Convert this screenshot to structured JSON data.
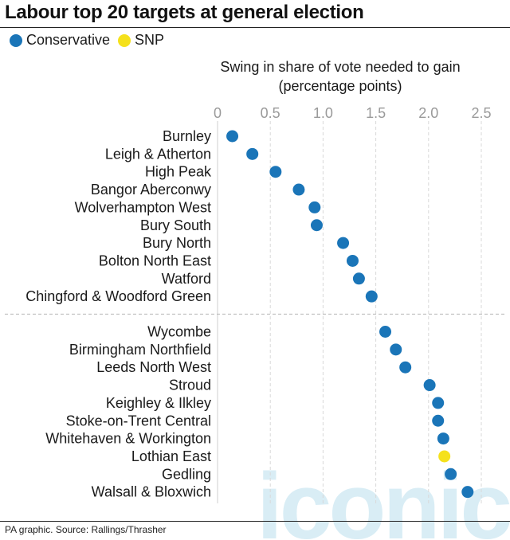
{
  "chart_data": {
    "type": "scatter",
    "title": "Labour top 20 targets at general election",
    "xlabel": [
      "Swing in share of vote needed to gain",
      "(percentage points)"
    ],
    "x_ticks": [
      "0",
      "0.5",
      "1.0",
      "1.5",
      "2.0",
      "2.5"
    ],
    "x_tick_values": [
      0,
      0.5,
      1.0,
      1.5,
      2.0,
      2.5
    ],
    "xlim": [
      0,
      2.5
    ],
    "grid": "vertical dashed",
    "legend_placement": "top-left",
    "series": [
      {
        "name": "Conservative",
        "color": "#1a75b8"
      },
      {
        "name": "SNP",
        "color": "#f5e11c"
      }
    ],
    "points": [
      {
        "seat": "Burnley",
        "swing": 0.14,
        "party": "Conservative"
      },
      {
        "seat": "Leigh & Atherton",
        "swing": 0.33,
        "party": "Conservative"
      },
      {
        "seat": "High Peak",
        "swing": 0.55,
        "party": "Conservative"
      },
      {
        "seat": "Bangor Aberconwy",
        "swing": 0.77,
        "party": "Conservative"
      },
      {
        "seat": "Wolverhampton West",
        "swing": 0.92,
        "party": "Conservative"
      },
      {
        "seat": "Bury South",
        "swing": 0.94,
        "party": "Conservative"
      },
      {
        "seat": "Bury North",
        "swing": 1.19,
        "party": "Conservative"
      },
      {
        "seat": "Bolton North East",
        "swing": 1.28,
        "party": "Conservative"
      },
      {
        "seat": "Watford",
        "swing": 1.34,
        "party": "Conservative"
      },
      {
        "seat": "Chingford & Woodford Green",
        "swing": 1.46,
        "party": "Conservative"
      },
      {
        "seat": "Wycombe",
        "swing": 1.59,
        "party": "Conservative"
      },
      {
        "seat": "Birmingham Northfield",
        "swing": 1.69,
        "party": "Conservative"
      },
      {
        "seat": "Leeds North West",
        "swing": 1.78,
        "party": "Conservative"
      },
      {
        "seat": "Stroud",
        "swing": 2.01,
        "party": "Conservative"
      },
      {
        "seat": "Keighley & Ilkley",
        "swing": 2.09,
        "party": "Conservative"
      },
      {
        "seat": "Stoke-on-Trent Central",
        "swing": 2.09,
        "party": "Conservative"
      },
      {
        "seat": "Whitehaven & Workington",
        "swing": 2.14,
        "party": "Conservative"
      },
      {
        "seat": "Lothian East",
        "swing": 2.15,
        "party": "SNP"
      },
      {
        "seat": "Gedling",
        "swing": 2.21,
        "party": "Conservative"
      },
      {
        "seat": "Walsall & Bloxwich",
        "swing": 2.37,
        "party": "Conservative"
      }
    ]
  },
  "source": "PA graphic. Source: Rallings/Thrasher",
  "watermark": "iconic"
}
